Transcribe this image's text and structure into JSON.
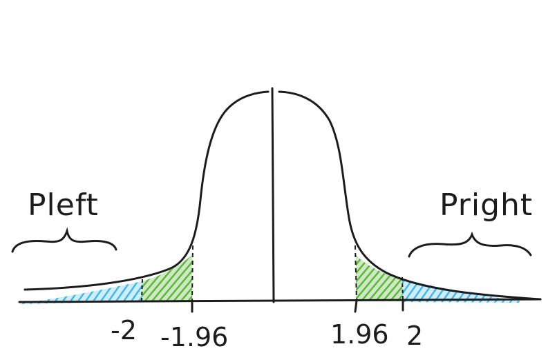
{
  "labels": {
    "p_left": "Pleft",
    "p_right": "Pright",
    "tick_neg2": "-2",
    "tick_neg196": "-1.96",
    "tick_pos196": "1.96",
    "tick_pos2": "2"
  },
  "colors": {
    "outer_tail": "#3fb8ea",
    "inner_band": "#5cb83a",
    "ink": "#1c1c1c"
  }
}
